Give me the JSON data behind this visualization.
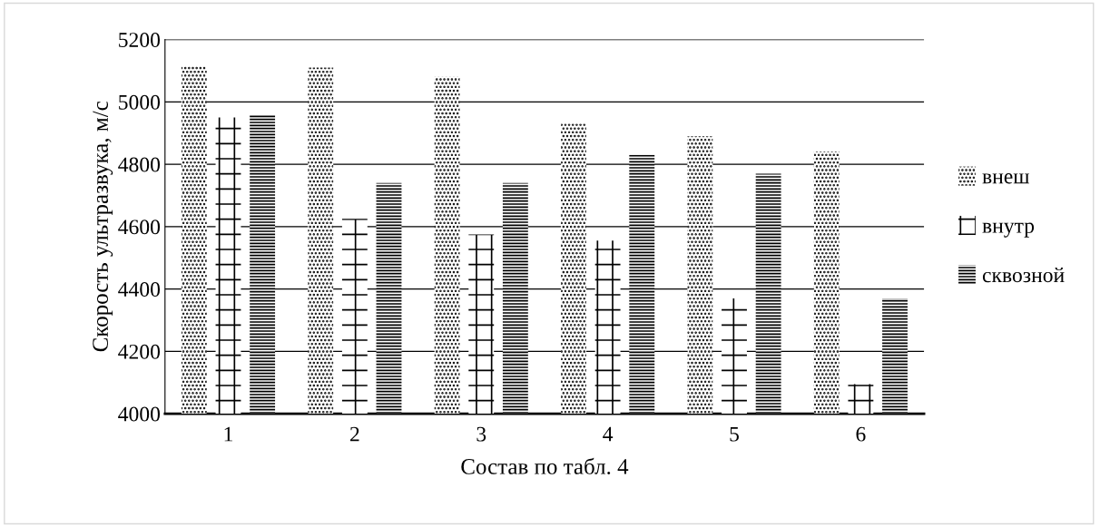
{
  "chart_data": {
    "type": "bar",
    "xlabel": "Состав по табл. 4",
    "ylabel": "Скорость ультразвука, м/с",
    "categories": [
      "1",
      "2",
      "3",
      "4",
      "5",
      "6"
    ],
    "series": [
      {
        "name": "внеш",
        "color": "#000000",
        "values": [
          5115,
          5110,
          5080,
          4930,
          4890,
          4840
        ]
      },
      {
        "name": "внутр",
        "color": "#000000",
        "values": [
          4950,
          4625,
          4575,
          4555,
          4370,
          4095
        ]
      },
      {
        "name": "сквозной",
        "color": "#000000",
        "values": [
          4960,
          4740,
          4740,
          4830,
          4770,
          4370
        ]
      }
    ],
    "ylim": [
      4000,
      5200
    ],
    "yticks": [
      4000,
      4200,
      4400,
      4600,
      4800,
      5000,
      5200
    ],
    "grid": "y",
    "legend": "right"
  }
}
